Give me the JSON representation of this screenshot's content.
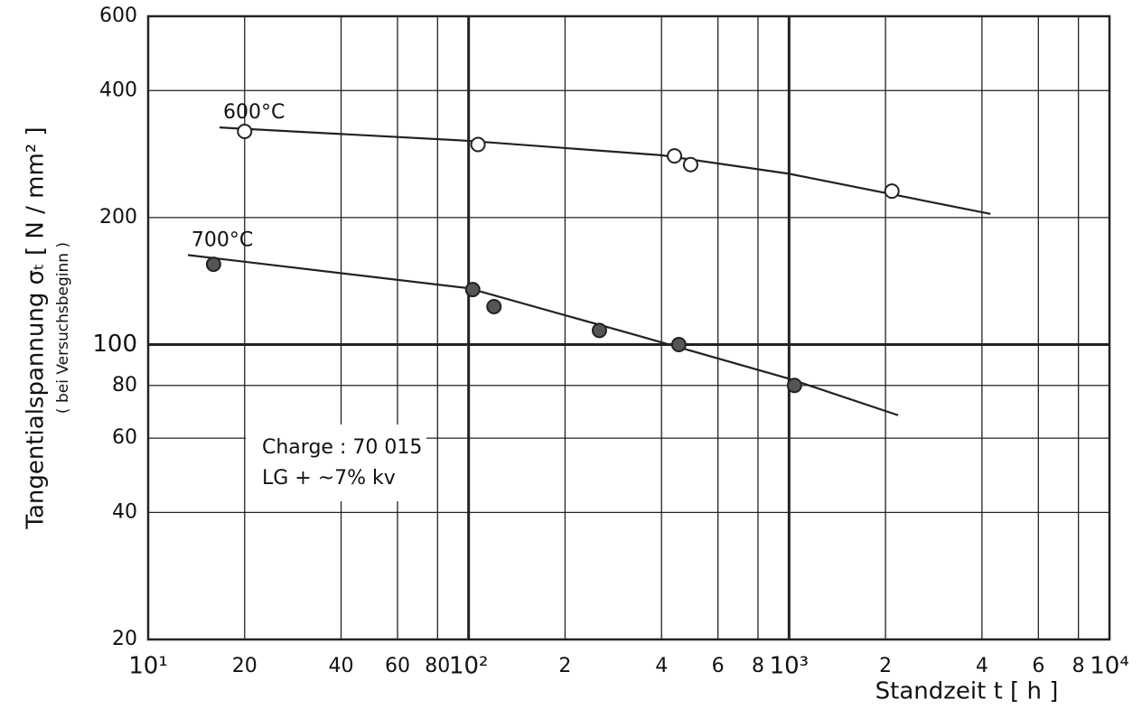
{
  "chart_data": {
    "type": "scatter",
    "xlabel": "Standzeit  t [ h ]",
    "ylabel": "Tangentialspannung  σₜ [ N / mm² ]",
    "ylabel_note": "( bei Versuchsbeginn )",
    "xscale": "log",
    "yscale": "log",
    "grid": true,
    "xlim": [
      10,
      10000
    ],
    "ylim": [
      20,
      600
    ],
    "xticks": [
      {
        "value": 10,
        "label": "10¹"
      },
      20,
      40,
      60,
      80,
      {
        "value": 100,
        "label": "10²"
      },
      {
        "value": 200,
        "label": "2"
      },
      {
        "value": 400,
        "label": "4"
      },
      {
        "value": 600,
        "label": "6"
      },
      {
        "value": 800,
        "label": "8"
      },
      {
        "value": 1000,
        "label": "10³"
      },
      {
        "value": 2000,
        "label": "2"
      },
      {
        "value": 4000,
        "label": "4"
      },
      {
        "value": 6000,
        "label": "6"
      },
      {
        "value": 8000,
        "label": "8"
      },
      {
        "value": 10000,
        "label": "10⁴"
      }
    ],
    "yticks": [
      20,
      40,
      60,
      80,
      100,
      200,
      400,
      600
    ],
    "annotations": [
      "Charge : 70 015",
      "LG + ~7% kv"
    ],
    "series": [
      {
        "name": "600°C",
        "marker": "open",
        "color": "#222",
        "x": [
          20,
          107,
          439,
          493,
          2094
        ],
        "values": [
          320,
          298,
          280,
          267,
          231
        ],
        "fit_x": [
          16.7,
          100,
          400,
          1000,
          4250
        ],
        "fit_values": [
          327,
          304,
          281,
          254,
          204
        ]
      },
      {
        "name": "700°C",
        "marker": "filled",
        "color": "#222",
        "x": [
          16,
          103,
          120,
          256,
          453,
          1040
        ],
        "values": [
          155,
          135,
          123,
          108,
          100,
          80
        ],
        "fit_x": [
          13.3,
          100,
          323,
          1000,
          2190
        ],
        "fit_values": [
          163,
          136,
          106,
          83,
          68
        ]
      }
    ]
  }
}
